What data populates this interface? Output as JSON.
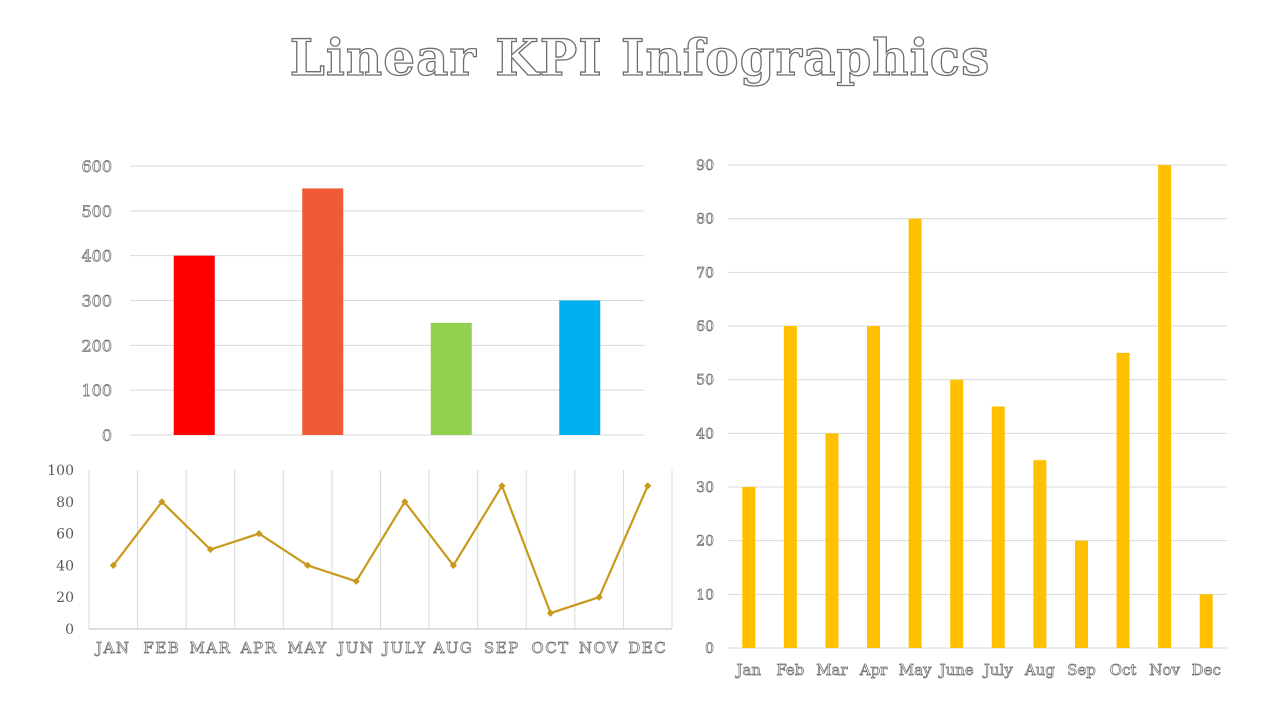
{
  "title": "Linear KPI Infographics",
  "chart_data": [
    {
      "type": "bar",
      "title": "",
      "categories": [
        "",
        "",
        "",
        ""
      ],
      "values": [
        400,
        550,
        250,
        300
      ],
      "colors": [
        "#ff0000",
        "#f05a37",
        "#92d050",
        "#00b0f0"
      ],
      "yticks": [
        0,
        100,
        200,
        300,
        400,
        500,
        600
      ],
      "ylim": [
        0,
        600
      ],
      "grid": true
    },
    {
      "type": "line",
      "title": "",
      "categories": [
        "JAN",
        "FEB",
        "MAR",
        "APR",
        "MAY",
        "JUN",
        "JULY",
        "AUG",
        "SEP",
        "OCT",
        "NOV",
        "DEC"
      ],
      "values": [
        40,
        80,
        50,
        60,
        40,
        30,
        80,
        40,
        90,
        10,
        20,
        90
      ],
      "color": "#c9991c",
      "yticks": [
        0,
        20,
        40,
        60,
        80,
        100
      ],
      "ylim": [
        0,
        100
      ],
      "grid": true,
      "marker": "diamond"
    },
    {
      "type": "bar",
      "title": "",
      "categories": [
        "Jan",
        "Feb",
        "Mar",
        "Apr",
        "May",
        "June",
        "July",
        "Aug",
        "Sep",
        "Oct",
        "Nov",
        "Dec"
      ],
      "values": [
        30,
        60,
        40,
        60,
        80,
        50,
        45,
        35,
        20,
        55,
        90,
        10
      ],
      "color": "#ffc000",
      "yticks": [
        0,
        10,
        20,
        30,
        40,
        50,
        60,
        70,
        80,
        90
      ],
      "ylim": [
        0,
        90
      ],
      "grid": true
    }
  ]
}
